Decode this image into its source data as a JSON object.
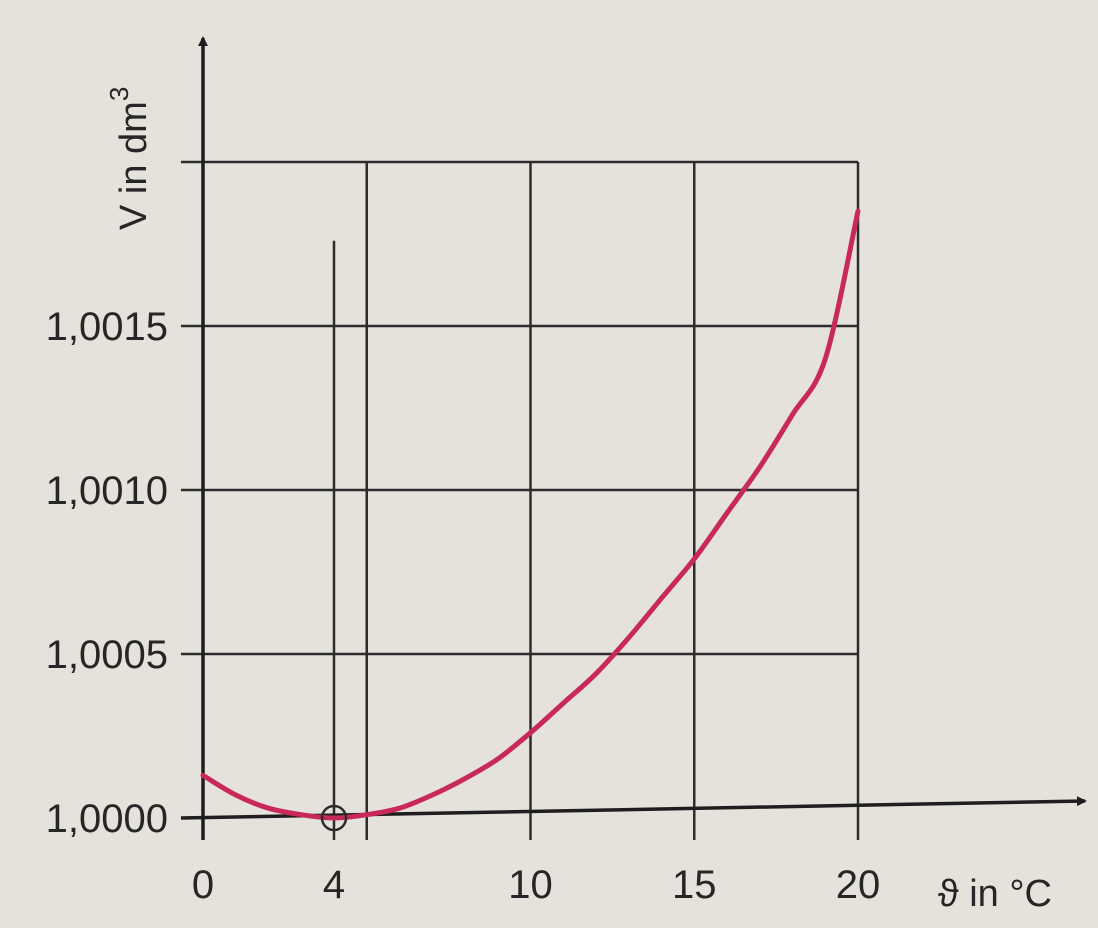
{
  "chart_data": {
    "type": "line",
    "xlabel": "ϑ in °C",
    "ylabel": "V in dm",
    "ylabel_superscript": "3",
    "xlim": [
      0,
      20
    ],
    "ylim": [
      1.0,
      1.002
    ],
    "x_ticks": [
      0,
      4,
      10,
      15,
      20
    ],
    "x_tick_labels": [
      "0",
      "4",
      "10",
      "15",
      "20"
    ],
    "y_ticks": [
      1.0,
      1.0005,
      1.001,
      1.0015
    ],
    "y_tick_labels": [
      "1,0000",
      "1,0005",
      "1,0010",
      "1,0015"
    ],
    "x_grid": [
      0,
      5,
      10,
      15,
      20
    ],
    "y_grid": [
      1.0,
      1.0005,
      1.001,
      1.0015,
      1.002
    ],
    "marker_line_x": 4,
    "marker_line_top": 1.00176,
    "minimum_point": {
      "x": 4,
      "y": 1.0
    },
    "grid": true,
    "series": [
      {
        "color": "#c8285a",
        "x": [
          0,
          1,
          2,
          3,
          4,
          5,
          6,
          7,
          8,
          9,
          10,
          11,
          12,
          13,
          14,
          15,
          16,
          17,
          18,
          19,
          20
        ],
        "y": [
          1.00013,
          1.00007,
          1.00003,
          1.00001,
          1.0,
          1.00001,
          1.00003,
          1.00007,
          1.00012,
          1.00018,
          1.00026,
          1.00035,
          1.00044,
          1.00055,
          1.00067,
          1.00079,
          1.00093,
          1.00107,
          1.00123,
          1.0014,
          1.00185
        ]
      }
    ]
  }
}
